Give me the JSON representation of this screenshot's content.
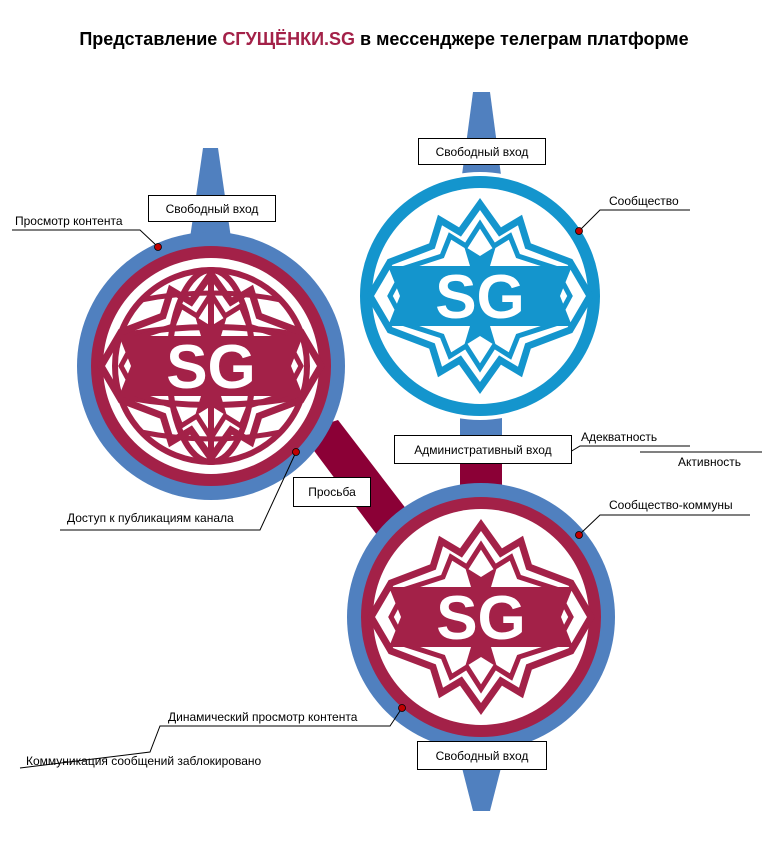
{
  "title": {
    "prefix": "Представление ",
    "brand": "СГУЩЁНКИ.SG",
    "suffix": " в мессенджере телеграм платформе"
  },
  "colors": {
    "crimson": "#a32148",
    "dark_crimson": "#8b0036",
    "blue": "#5080bf",
    "cyan": "#1495cd",
    "dot": "#c00000"
  },
  "circles": {
    "left": {
      "logo": "SG"
    },
    "top_right": {
      "logo": "SG"
    },
    "bottom_right": {
      "logo": "SG"
    }
  },
  "boxes": {
    "left_free_entry": "Свободный вход",
    "top_free_entry": "Свободный вход",
    "admin_entry": "Административный вход",
    "request": "Просьба",
    "bottom_free_entry": "Свободный вход"
  },
  "labels": {
    "content_view": "Просмотр контента",
    "community": "Сообщество",
    "adequacy": "Адекватность",
    "activity": "Активность",
    "community_communes": "Сообщество-коммуны",
    "channel_access": "Доступ к публикациям канала",
    "dynamic_view": "Динамический просмотр контента",
    "messages_blocked": "Коммуникация сообщений заблокировано"
  }
}
